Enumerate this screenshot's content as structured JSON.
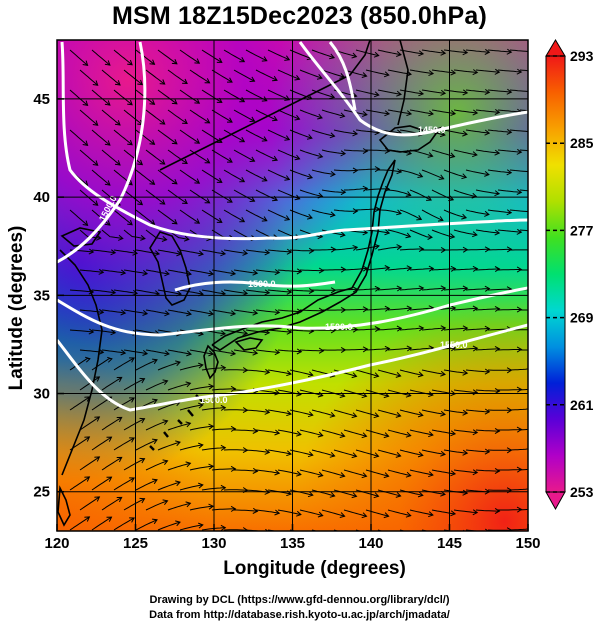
{
  "title": "MSM 18Z15Dec2023 (850.0hPa)",
  "axes": {
    "xlabel": "Longitude (degrees)",
    "ylabel": "Latitude  (degrees)",
    "xlim": [
      120,
      150
    ],
    "ylim": [
      23,
      48
    ],
    "xticks": [
      "120",
      "125",
      "130",
      "135",
      "140",
      "145",
      "150"
    ],
    "yticks": [
      "25",
      "30",
      "35",
      "40",
      "45"
    ]
  },
  "colorbar": {
    "min": 253,
    "max": 293,
    "ticks": [
      "293",
      "285",
      "277",
      "269",
      "261",
      "253"
    ],
    "colors": [
      "#e8198c",
      "#b000c8",
      "#5a00d8",
      "#0020d8",
      "#0090e0",
      "#00d8d0",
      "#00e070",
      "#40e020",
      "#b0e000",
      "#f0e000",
      "#f8a000",
      "#f86000",
      "#f01818"
    ]
  },
  "contours": {
    "labels": [
      "1500.0",
      "1500.0",
      "1450.0",
      "1500.0",
      "1500.0",
      "1550.0"
    ]
  },
  "credits": {
    "line1": "Drawing by DCL (https://www.gfd-dennou.org/library/dcl/)",
    "line2": "Data from http://database.rish.kyoto-u.ac.jp/arch/jmadata/"
  }
}
